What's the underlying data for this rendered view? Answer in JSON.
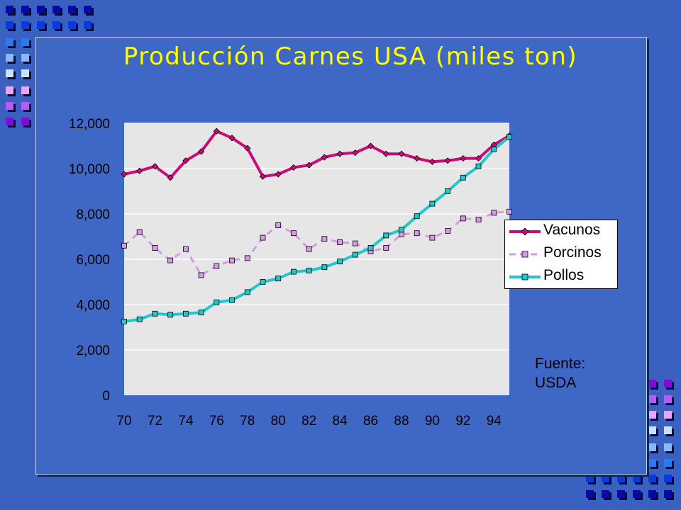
{
  "slide": {
    "title": "Producción Carnes USA (miles ton)",
    "source_line1": "Fuente:",
    "source_line2": "USDA"
  },
  "colors": {
    "background": "#3a61c0",
    "title": "#ffff00",
    "plot_area": "#e6e6e6",
    "vacunos": "#cc0a7a",
    "porcinos": "#d89ae6",
    "pollos": "#1fc9c9"
  },
  "chart_data": {
    "type": "line",
    "title": "Producción Carnes USA (miles ton)",
    "xlabel": "",
    "ylabel": "",
    "x": [
      70,
      71,
      72,
      73,
      74,
      75,
      76,
      77,
      78,
      79,
      80,
      81,
      82,
      83,
      84,
      85,
      86,
      87,
      88,
      89,
      90,
      91,
      92,
      93,
      94,
      95
    ],
    "x_tick_labels": [
      "70",
      "72",
      "74",
      "76",
      "78",
      "80",
      "82",
      "84",
      "86",
      "88",
      "90",
      "92",
      "94"
    ],
    "y_tick_labels": [
      "0",
      "2,000",
      "4,000",
      "6,000",
      "8,000",
      "10,000",
      "12,000"
    ],
    "ylim": [
      0,
      12000
    ],
    "grid": true,
    "legend_position": "right",
    "series": [
      {
        "name": "Vacunos",
        "style": "solid",
        "marker": "diamond",
        "values": [
          9750,
          9900,
          10100,
          9600,
          10350,
          10750,
          11650,
          11350,
          10900,
          9650,
          9750,
          10050,
          10150,
          10500,
          10650,
          10700,
          11000,
          10650,
          10650,
          10450,
          10300,
          10350,
          10450,
          10450,
          11050,
          11450
        ]
      },
      {
        "name": "Porcinos",
        "style": "dashed",
        "marker": "square",
        "values": [
          6600,
          7200,
          6500,
          5950,
          6450,
          5300,
          5700,
          5950,
          6050,
          6950,
          7500,
          7150,
          6450,
          6900,
          6750,
          6700,
          6350,
          6500,
          7100,
          7150,
          6950,
          7250,
          7800,
          7750,
          8050,
          8100
        ]
      },
      {
        "name": "Pollos",
        "style": "solid",
        "marker": "square",
        "values": [
          3250,
          3350,
          3600,
          3550,
          3600,
          3650,
          4100,
          4200,
          4550,
          5000,
          5150,
          5450,
          5500,
          5650,
          5900,
          6200,
          6500,
          7050,
          7300,
          7900,
          8450,
          9000,
          9600,
          10100,
          10850,
          11400
        ]
      }
    ]
  }
}
